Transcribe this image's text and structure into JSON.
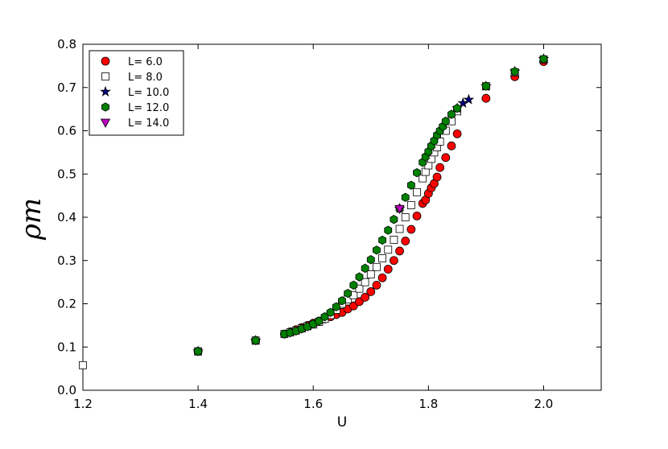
{
  "chart_data": {
    "type": "scatter",
    "xlabel": "U",
    "ylabel": "ρm",
    "xlim": [
      1.2,
      2.1
    ],
    "ylim": [
      0,
      0.8
    ],
    "xticks": [
      1.2,
      1.4,
      1.6,
      1.8,
      {
        "value": 2,
        "label": "2.0"
      }
    ],
    "yticks": [
      {
        "value": 0,
        "label": "0.0"
      },
      0.1,
      0.2,
      0.3,
      0.4,
      0.5,
      0.6,
      0.7,
      0.8
    ],
    "legend": "upper left",
    "series": [
      {
        "name": "L= 6.0",
        "color": "#ff0000",
        "marker": "circle",
        "x": [
          1.4,
          1.5,
          1.55,
          1.56,
          1.57,
          1.58,
          1.59,
          1.6,
          1.61,
          1.62,
          1.63,
          1.64,
          1.65,
          1.66,
          1.67,
          1.68,
          1.69,
          1.7,
          1.71,
          1.72,
          1.73,
          1.74,
          1.75,
          1.76,
          1.77,
          1.78,
          1.79,
          1.795,
          1.8,
          1.805,
          1.81,
          1.815,
          1.82,
          1.83,
          1.84,
          1.85,
          1.9,
          1.95,
          2.0
        ],
        "values": [
          0.09,
          0.115,
          0.13,
          0.135,
          0.14,
          0.145,
          0.15,
          0.155,
          0.16,
          0.165,
          0.17,
          0.175,
          0.18,
          0.188,
          0.195,
          0.205,
          0.215,
          0.228,
          0.243,
          0.26,
          0.28,
          0.3,
          0.322,
          0.345,
          0.372,
          0.403,
          0.432,
          0.44,
          0.455,
          0.468,
          0.478,
          0.493,
          0.515,
          0.538,
          0.565,
          0.593,
          0.675,
          0.725,
          0.76
        ]
      },
      {
        "name": "L= 8.0",
        "color": "#ffffff",
        "marker": "square",
        "x": [
          1.2,
          1.4,
          1.5,
          1.55,
          1.56,
          1.57,
          1.58,
          1.59,
          1.6,
          1.61,
          1.62,
          1.63,
          1.64,
          1.65,
          1.66,
          1.67,
          1.68,
          1.69,
          1.7,
          1.71,
          1.72,
          1.73,
          1.74,
          1.75,
          1.76,
          1.77,
          1.78,
          1.79,
          1.795,
          1.8,
          1.805,
          1.81,
          1.815,
          1.82,
          1.83,
          1.84,
          1.85,
          1.9,
          1.95,
          2.0
        ],
        "values": [
          0.058,
          0.09,
          0.115,
          0.13,
          0.134,
          0.138,
          0.143,
          0.148,
          0.152,
          0.158,
          0.165,
          0.174,
          0.186,
          0.2,
          0.21,
          0.22,
          0.235,
          0.25,
          0.268,
          0.285,
          0.305,
          0.325,
          0.348,
          0.373,
          0.4,
          0.428,
          0.458,
          0.49,
          0.505,
          0.52,
          0.535,
          0.55,
          0.562,
          0.575,
          0.6,
          0.622,
          0.645,
          0.703,
          0.735,
          0.765
        ]
      },
      {
        "name": "L= 10.0",
        "color": "#000080",
        "marker": "star",
        "x": [
          1.4,
          1.5,
          1.75,
          1.85,
          1.86,
          1.87,
          1.9,
          1.95,
          2.0
        ],
        "values": [
          0.09,
          0.115,
          0.42,
          0.652,
          0.664,
          0.672,
          0.703,
          0.737,
          0.766
        ]
      },
      {
        "name": "L= 12.0",
        "color": "#008000",
        "marker": "hexagon",
        "x": [
          1.4,
          1.5,
          1.55,
          1.56,
          1.57,
          1.58,
          1.59,
          1.6,
          1.61,
          1.62,
          1.63,
          1.64,
          1.65,
          1.66,
          1.67,
          1.68,
          1.69,
          1.7,
          1.71,
          1.72,
          1.73,
          1.74,
          1.75,
          1.76,
          1.77,
          1.78,
          1.79,
          1.795,
          1.8,
          1.805,
          1.81,
          1.815,
          1.82,
          1.825,
          1.83,
          1.84,
          1.85,
          1.9,
          1.95,
          2.0
        ],
        "values": [
          0.09,
          0.115,
          0.13,
          0.133,
          0.137,
          0.142,
          0.147,
          0.153,
          0.16,
          0.17,
          0.18,
          0.193,
          0.207,
          0.224,
          0.243,
          0.262,
          0.282,
          0.302,
          0.324,
          0.347,
          0.37,
          0.395,
          0.42,
          0.446,
          0.474,
          0.503,
          0.527,
          0.54,
          0.552,
          0.565,
          0.577,
          0.59,
          0.6,
          0.61,
          0.622,
          0.638,
          0.652,
          0.703,
          0.737,
          0.766
        ]
      },
      {
        "name": "L= 14.0",
        "color": "#bf00bf",
        "marker": "triangle-down",
        "x": [
          1.75
        ],
        "values": [
          0.42
        ]
      }
    ]
  }
}
